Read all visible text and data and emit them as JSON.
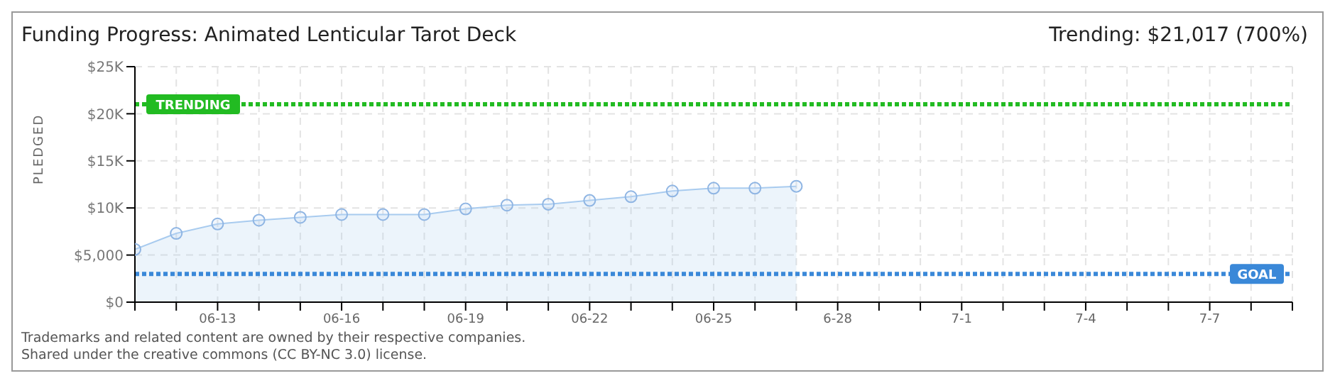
{
  "chart_data": {
    "type": "area",
    "title": "Funding Progress: Animated Lenticular Tarot Deck",
    "ylabel": "PLEDGED",
    "annotations": [
      "Trending: $21,017 (700%)",
      "Trademarks and related content are owned by their respective companies.",
      "Shared under the creative commons (CC BY-NC 3.0) license."
    ],
    "categories": [
      null,
      null,
      "06-13",
      null,
      null,
      "06-16",
      null,
      null,
      "06-19",
      null,
      null,
      "06-22",
      null,
      null,
      "06-25",
      null,
      null,
      "6-28",
      null,
      null,
      "7-1",
      null,
      null,
      "7-4",
      null,
      null,
      "7-7",
      null,
      null
    ],
    "series": [
      {
        "color": "#a8cbef",
        "values": [
          5600,
          7300,
          8300,
          8700,
          9000,
          9300,
          9300,
          9300,
          9900,
          10300,
          10400,
          10800,
          11200,
          11800,
          12100,
          12100,
          12300,
          null,
          null,
          null,
          null,
          null,
          null,
          null,
          null,
          null,
          null,
          null,
          null
        ]
      }
    ],
    "ylim": [
      0,
      25000
    ],
    "yticks": [
      {
        "value": 0,
        "label": "$0"
      },
      {
        "value": 5000,
        "label": "$5,000"
      },
      {
        "value": 10000,
        "label": "$10K"
      },
      {
        "value": 15000,
        "label": "$15K"
      },
      {
        "value": 20000,
        "label": "$20K"
      },
      {
        "value": 25000,
        "label": "$25K"
      }
    ],
    "ref_lines": [
      {
        "axis": "y",
        "value": 21017,
        "label": "TRENDING",
        "color": "#22bb22",
        "line_style": "dotted"
      },
      {
        "axis": "y",
        "value": 3000,
        "label": "GOAL",
        "color": "#3a88d8",
        "line_style": "dotted"
      }
    ],
    "grid": true,
    "marker": "circle",
    "legend": false
  }
}
